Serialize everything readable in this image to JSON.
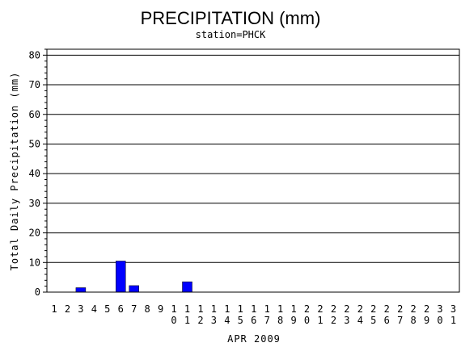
{
  "chart_data": {
    "type": "bar",
    "title": "PRECIPITATION (mm)",
    "subtitle": "station=PHCK",
    "xlabel": "APR 2009",
    "ylabel": "Total Daily Precipitation (mm)",
    "ylim": [
      0,
      82
    ],
    "yticks": [
      0,
      10,
      20,
      30,
      40,
      50,
      60,
      70,
      80
    ],
    "grid": true,
    "bar_color": "#0000ff",
    "categories": [
      "1",
      "2",
      "3",
      "4",
      "5",
      "6",
      "7",
      "8",
      "9",
      "10",
      "11",
      "12",
      "13",
      "14",
      "15",
      "16",
      "17",
      "18",
      "19",
      "20",
      "21",
      "22",
      "23",
      "24",
      "25",
      "26",
      "27",
      "28",
      "29",
      "30",
      "31"
    ],
    "values": [
      0,
      0,
      1.5,
      0,
      0,
      10.5,
      2.2,
      0,
      0,
      0,
      3.5,
      0,
      0,
      0,
      0,
      0,
      0,
      0,
      0,
      0,
      0,
      0,
      0,
      0,
      0,
      0,
      0,
      0,
      0,
      0,
      0
    ]
  }
}
